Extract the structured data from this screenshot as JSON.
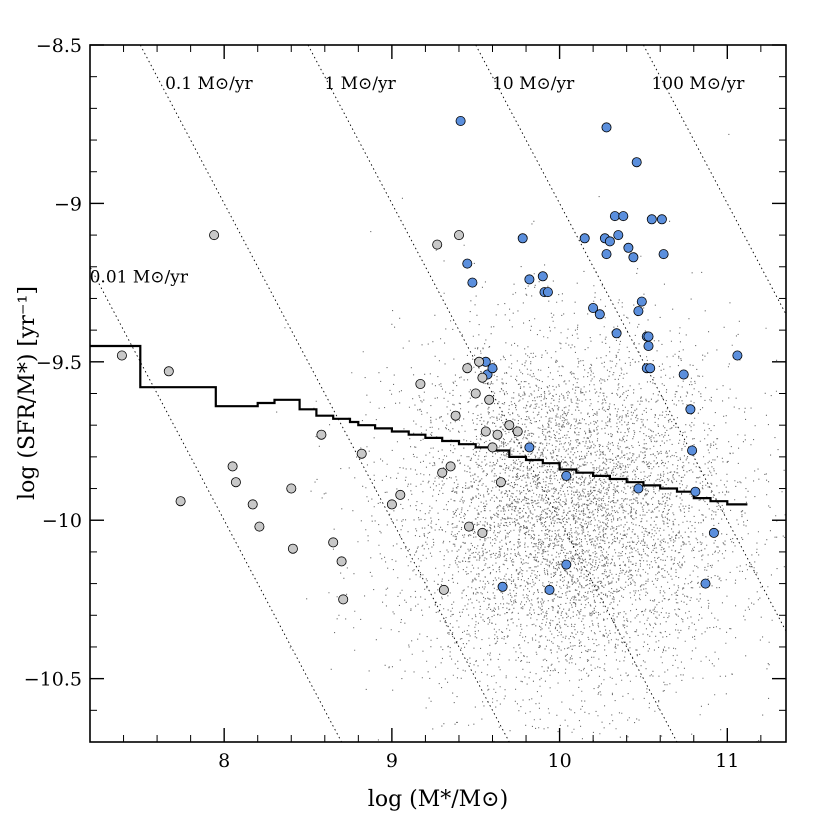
{
  "chart_data": {
    "type": "scatter",
    "title": "",
    "xlabel": "log (M*/M⊙)",
    "ylabel": "log (SFR/M*) [yr⁻¹]",
    "xlim": [
      7.2,
      11.35
    ],
    "ylim": [
      -10.7,
      -8.5
    ],
    "xticks": [
      8,
      9,
      10,
      11
    ],
    "xtick_labels": [
      "8",
      "9",
      "10",
      "11"
    ],
    "yticks": [
      -10.5,
      -10,
      -9.5,
      -9,
      -8.5
    ],
    "ytick_labels": [
      "−10.5",
      "−10",
      "−9.5",
      "−9",
      "−8.5"
    ],
    "grid": false,
    "colors": {
      "background_points": "#555555",
      "blue_points": "#5b8fdd",
      "gray_points": "#c8c8c8",
      "point_edge": "#000000",
      "step_line": "#000000",
      "iso_sfr_line": "#000000"
    },
    "iso_sfr_lines": [
      {
        "label": "0.01 M⊙/yr",
        "log_sfr": -2
      },
      {
        "label": "0.1 M⊙/yr",
        "log_sfr": -1
      },
      {
        "label": "1 M⊙/yr",
        "log_sfr": 0
      },
      {
        "label": "10 M⊙/yr",
        "log_sfr": 1
      },
      {
        "label": "100 M⊙/yr",
        "log_sfr": 2
      }
    ],
    "background_cloud": {
      "description": "dense field of small galaxies",
      "center": [
        10.05,
        -9.98
      ],
      "spread": [
        0.5,
        0.28
      ],
      "approx_count": 16000
    },
    "step_line": {
      "name": "median relation",
      "x": [
        7.2,
        7.5,
        7.5,
        7.95,
        7.95,
        8.2,
        8.2,
        8.3,
        8.3,
        8.45,
        8.45,
        8.55,
        8.55,
        8.65,
        8.65,
        8.75,
        8.75,
        8.8,
        8.8,
        8.9,
        8.9,
        9.0,
        9.0,
        9.1,
        9.1,
        9.2,
        9.2,
        9.3,
        9.3,
        9.4,
        9.4,
        9.5,
        9.5,
        9.6,
        9.6,
        9.7,
        9.7,
        9.8,
        9.8,
        9.9,
        9.9,
        10.0,
        10.0,
        10.1,
        10.1,
        10.2,
        10.2,
        10.3,
        10.3,
        10.4,
        10.4,
        10.5,
        10.5,
        10.6,
        10.6,
        10.7,
        10.7,
        10.8,
        10.8,
        10.9,
        10.9,
        11.0,
        11.0,
        11.12
      ],
      "y": [
        -9.45,
        -9.45,
        -9.58,
        -9.58,
        -9.64,
        -9.64,
        -9.63,
        -9.63,
        -9.62,
        -9.62,
        -9.65,
        -9.65,
        -9.67,
        -9.67,
        -9.68,
        -9.68,
        -9.69,
        -9.69,
        -9.7,
        -9.7,
        -9.71,
        -9.71,
        -9.72,
        -9.72,
        -9.73,
        -9.73,
        -9.74,
        -9.74,
        -9.75,
        -9.75,
        -9.76,
        -9.76,
        -9.77,
        -9.77,
        -9.78,
        -9.78,
        -9.8,
        -9.8,
        -9.81,
        -9.81,
        -9.82,
        -9.82,
        -9.84,
        -9.84,
        -9.85,
        -9.85,
        -9.86,
        -9.86,
        -9.87,
        -9.87,
        -9.88,
        -9.88,
        -9.89,
        -9.89,
        -9.9,
        -9.9,
        -9.91,
        -9.91,
        -9.93,
        -9.93,
        -9.94,
        -9.94,
        -9.95,
        -9.95
      ]
    },
    "series": [
      {
        "name": "blue galaxies",
        "x": [
          9.41,
          10.28,
          10.46,
          9.45,
          9.48,
          9.78,
          9.82,
          9.9,
          9.91,
          9.93,
          10.15,
          10.2,
          10.24,
          10.27,
          10.3,
          10.33,
          10.35,
          10.38,
          10.41,
          10.44,
          10.47,
          10.49,
          10.52,
          10.53,
          10.55,
          10.61,
          10.62,
          10.28,
          10.34,
          10.52,
          10.53,
          10.54,
          10.74,
          10.78,
          11.06,
          10.79,
          9.56,
          9.57,
          9.6,
          9.82,
          10.04,
          10.47,
          10.81,
          10.92,
          10.87,
          10.04,
          9.66,
          9.94
        ],
        "y": [
          -8.74,
          -8.76,
          -8.87,
          -9.19,
          -9.25,
          -9.11,
          -9.24,
          -9.23,
          -9.28,
          -9.28,
          -9.11,
          -9.33,
          -9.35,
          -9.11,
          -9.12,
          -9.04,
          -9.1,
          -9.04,
          -9.14,
          -9.17,
          -9.34,
          -9.31,
          -9.42,
          -9.45,
          -9.05,
          -9.05,
          -9.16,
          -9.16,
          -9.41,
          -9.52,
          -9.42,
          -9.52,
          -9.54,
          -9.65,
          -9.48,
          -9.78,
          -9.5,
          -9.54,
          -9.52,
          -9.77,
          -9.86,
          -9.9,
          -9.91,
          -10.04,
          -10.2,
          -10.14,
          -10.21,
          -10.22
        ]
      },
      {
        "name": "gray galaxies",
        "x": [
          7.39,
          7.67,
          7.94,
          7.74,
          8.05,
          8.07,
          8.17,
          8.21,
          8.4,
          8.41,
          8.58,
          8.65,
          8.7,
          8.71,
          8.82,
          9.0,
          9.05,
          9.17,
          9.27,
          9.31,
          9.35,
          9.38,
          9.4,
          9.45,
          9.46,
          9.5,
          9.52,
          9.54,
          9.56,
          9.58,
          9.6,
          9.63,
          9.65,
          9.7,
          9.75,
          9.54,
          9.3
        ],
        "y": [
          -9.48,
          -9.53,
          -9.1,
          -9.94,
          -9.83,
          -9.88,
          -9.95,
          -10.02,
          -9.9,
          -10.09,
          -9.73,
          -10.07,
          -10.13,
          -10.25,
          -9.79,
          -9.95,
          -9.92,
          -9.57,
          -9.13,
          -10.22,
          -9.83,
          -9.67,
          -9.1,
          -9.52,
          -10.02,
          -9.6,
          -9.5,
          -9.55,
          -9.72,
          -9.62,
          -9.77,
          -9.73,
          -9.88,
          -9.7,
          -9.72,
          -10.04,
          -9.85
        ]
      }
    ]
  }
}
